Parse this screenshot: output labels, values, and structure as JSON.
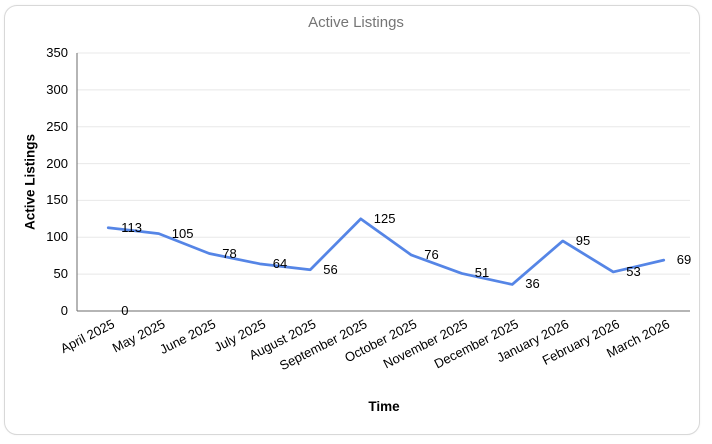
{
  "chart_data": {
    "type": "line",
    "title": "Active Listings",
    "xlabel": "Time",
    "ylabel": "Active Listings",
    "categories": [
      "April 2025",
      "May 2025",
      "June 2025",
      "July 2025",
      "August 2025",
      "September 2025",
      "October 2025",
      "November 2025",
      "December 2025",
      "January 2026",
      "February 2026",
      "March 2026"
    ],
    "series": [
      {
        "name": "Active Listings",
        "values": [
          113,
          105,
          78,
          64,
          56,
          125,
          76,
          51,
          36,
          95,
          53,
          69
        ]
      }
    ],
    "annotations": [
      {
        "category_index": 0,
        "value": 0,
        "label": "0"
      }
    ],
    "ylim": [
      0,
      350
    ],
    "yticks": [
      0,
      50,
      100,
      150,
      200,
      250,
      300,
      350
    ],
    "grid": true,
    "legend": "none",
    "line_color": "#5585e6",
    "grid_color": "#e8e8e8",
    "axis_color": "#6b6b6b",
    "title_color": "#757575",
    "label_color": "#000000"
  }
}
